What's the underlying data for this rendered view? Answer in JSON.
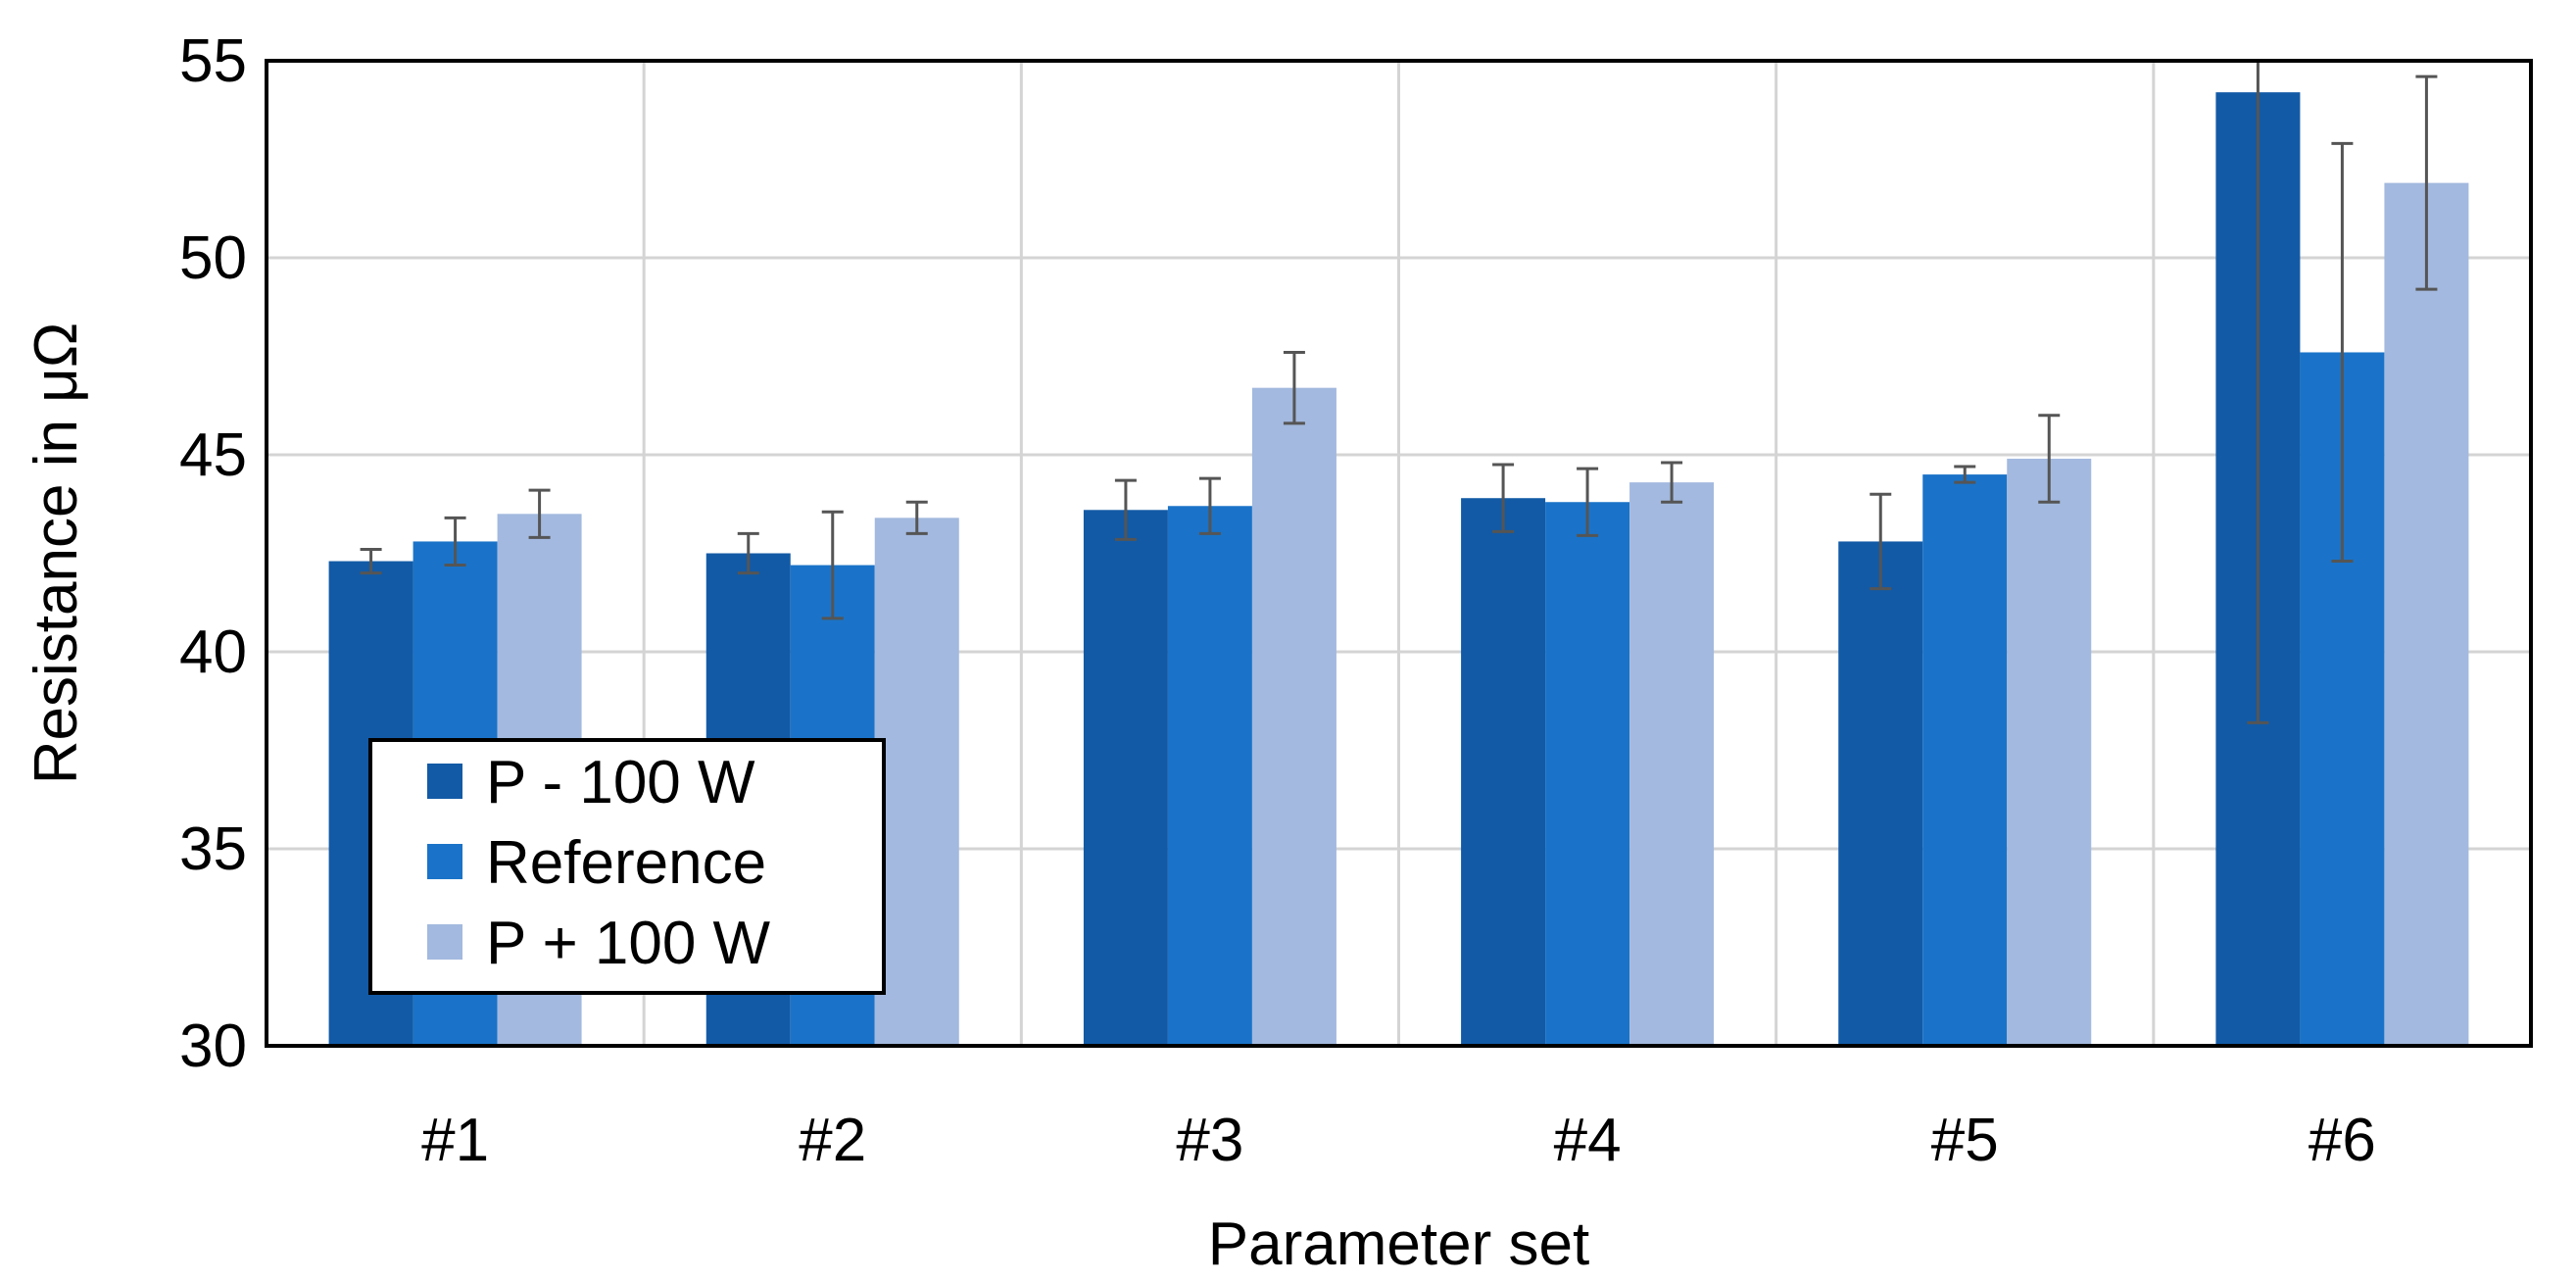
{
  "chart_data": {
    "type": "bar",
    "title": "",
    "xlabel": "Parameter set",
    "ylabel": "Resistance in μΩ",
    "categories": [
      "#1",
      "#2",
      "#3",
      "#4",
      "#5",
      "#6"
    ],
    "ylim": [
      30,
      55
    ],
    "yticks": [
      30,
      35,
      40,
      45,
      50,
      55
    ],
    "grid": true,
    "legend_position": "bottom-left",
    "series": [
      {
        "name": "P - 100 W",
        "color": "#125aa6",
        "values": [
          42.3,
          42.5,
          43.6,
          43.9,
          42.8,
          54.2
        ],
        "errors": [
          0.3,
          0.5,
          0.75,
          0.85,
          1.2,
          16.0
        ]
      },
      {
        "name": "Reference",
        "color": "#1a73c8",
        "values": [
          42.8,
          42.2,
          43.7,
          43.8,
          44.5,
          47.6
        ],
        "errors": [
          0.6,
          1.35,
          0.7,
          0.85,
          0.2,
          5.3
        ]
      },
      {
        "name": "P + 100 W",
        "color": "#a3b9df",
        "values": [
          43.5,
          43.4,
          46.7,
          44.3,
          44.9,
          51.9
        ],
        "errors": [
          0.6,
          0.4,
          0.9,
          0.5,
          1.1,
          2.7
        ]
      }
    ],
    "error_bar_color": "#555555",
    "grid_color": "#d4d4d4"
  }
}
